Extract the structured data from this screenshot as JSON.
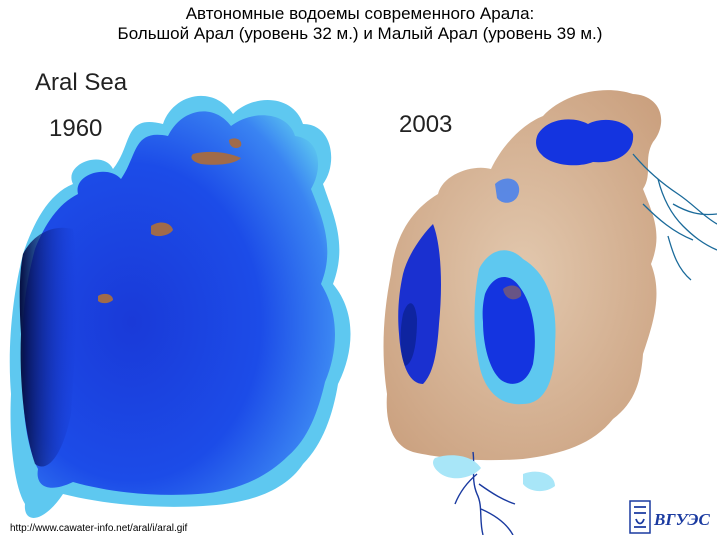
{
  "title": {
    "line1": "Автономные водоемы современного Арала:",
    "line2": "Большой Арал (уровень 32 м.) и Малый Арал (уровень 39 м.)"
  },
  "map": {
    "heading": "Aral   Sea",
    "year_left": "1960",
    "year_right": "2003"
  },
  "source_url": "http://www.cawater-info.net/aral/i/aral.gif",
  "logo_text": "ВГУЭС",
  "colors": {
    "deep_water": "#0a1f8c",
    "water": "#1434e0",
    "shallow_water": "#3a7cf5",
    "shelf_water": "#5ec8f0",
    "dried_seabed": "#d9b89a",
    "land_brown": "#a06b4a",
    "rivers": "#1a6a9a"
  }
}
